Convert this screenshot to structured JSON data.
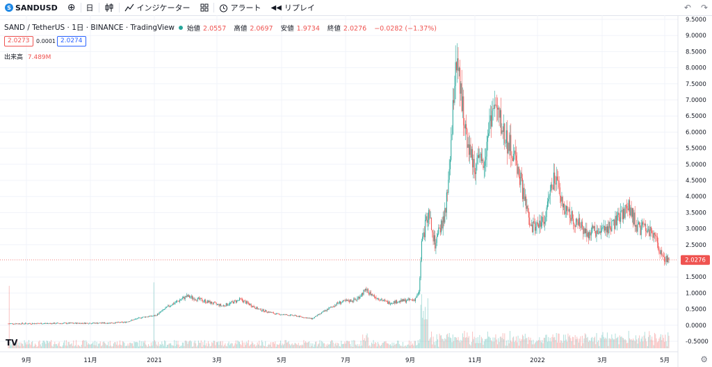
{
  "toolbar": {
    "symbol": "SANDUSD",
    "symbol_badge": "S",
    "add_icon": "⊕",
    "interval": "日",
    "candles_icon": "candles-icon",
    "indicators_label": "インジケーター",
    "layout_icon": "grid-icon",
    "alert_label": "アラート",
    "replay_label": "リプレイ",
    "undo_icon": "↶",
    "redo_icon": "↷"
  },
  "legend": {
    "title": "SAND / TetherUS · 1日 · BINANCE · TradingView",
    "open_label": "始値",
    "open": "2.0557",
    "high_label": "高値",
    "high": "2.0697",
    "low_label": "安値",
    "low": "1.9734",
    "close_label": "終値",
    "close": "2.0276",
    "change": "−0.0282 (−1.37%)",
    "bid": "2.0273",
    "spread": "0.0001",
    "ask": "2.0274",
    "volume_label": "出来高",
    "volume_value": "7.489M"
  },
  "colors": {
    "up": "#26a69a",
    "down": "#ef5350",
    "last_price_bg": "#ef5350"
  },
  "chart_data": {
    "type": "candlestick",
    "y_axis_labels": [
      "9.5000",
      "9.0000",
      "8.5000",
      "8.0000",
      "7.5000",
      "7.0000",
      "6.5000",
      "6.0000",
      "5.5000",
      "5.0000",
      "4.5000",
      "4.0000",
      "3.5000",
      "3.0000",
      "2.5000",
      "1.5000",
      "1.0000",
      "0.5000",
      "0.0000",
      "-0.5000"
    ],
    "y_axis_values": [
      9.5,
      9.0,
      8.5,
      8.0,
      7.5,
      7.0,
      6.5,
      6.0,
      5.5,
      5.0,
      4.5,
      4.0,
      3.5,
      3.0,
      2.5,
      1.5,
      1.0,
      0.5,
      0.0,
      -0.5
    ],
    "ylim": [
      -0.5,
      9.5
    ],
    "x_axis_labels": [
      "9月",
      "11月",
      "2021",
      "3月",
      "5月",
      "7月",
      "9月",
      "11月",
      "2022",
      "3月",
      "5月"
    ],
    "last_price": 2.0276,
    "last_price_label": "2.0276",
    "price_path": [
      {
        "d": 0,
        "p": 0.05
      },
      {
        "d": 60,
        "p": 0.06
      },
      {
        "d": 110,
        "p": 0.07
      },
      {
        "d": 130,
        "p": 0.09
      },
      {
        "d": 150,
        "p": 0.25
      },
      {
        "d": 165,
        "p": 0.3
      },
      {
        "d": 180,
        "p": 0.6
      },
      {
        "d": 200,
        "p": 0.9
      },
      {
        "d": 220,
        "p": 0.75
      },
      {
        "d": 240,
        "p": 0.6
      },
      {
        "d": 260,
        "p": 0.8
      },
      {
        "d": 280,
        "p": 0.5
      },
      {
        "d": 300,
        "p": 0.35
      },
      {
        "d": 320,
        "p": 0.3
      },
      {
        "d": 340,
        "p": 0.2
      },
      {
        "d": 355,
        "p": 0.45
      },
      {
        "d": 370,
        "p": 0.7
      },
      {
        "d": 390,
        "p": 0.8
      },
      {
        "d": 400,
        "p": 1.1
      },
      {
        "d": 410,
        "p": 0.9
      },
      {
        "d": 425,
        "p": 0.7
      },
      {
        "d": 440,
        "p": 0.75
      },
      {
        "d": 455,
        "p": 0.8
      },
      {
        "d": 460,
        "p": 1.0
      },
      {
        "d": 463,
        "p": 2.5
      },
      {
        "d": 470,
        "p": 3.5
      },
      {
        "d": 478,
        "p": 2.5
      },
      {
        "d": 490,
        "p": 3.5
      },
      {
        "d": 497,
        "p": 6.0
      },
      {
        "d": 501,
        "p": 8.3
      },
      {
        "d": 510,
        "p": 6.5
      },
      {
        "d": 520,
        "p": 5.0
      },
      {
        "d": 532,
        "p": 5.0
      },
      {
        "d": 540,
        "p": 6.5
      },
      {
        "d": 545,
        "p": 6.8
      },
      {
        "d": 555,
        "p": 6.0
      },
      {
        "d": 570,
        "p": 5.0
      },
      {
        "d": 585,
        "p": 3.0
      },
      {
        "d": 600,
        "p": 3.3
      },
      {
        "d": 612,
        "p": 4.6
      },
      {
        "d": 620,
        "p": 3.8
      },
      {
        "d": 635,
        "p": 3.2
      },
      {
        "d": 650,
        "p": 2.9
      },
      {
        "d": 665,
        "p": 2.9
      },
      {
        "d": 680,
        "p": 3.2
      },
      {
        "d": 695,
        "p": 3.7
      },
      {
        "d": 705,
        "p": 3.0
      },
      {
        "d": 715,
        "p": 3.0
      },
      {
        "d": 725,
        "p": 2.7
      },
      {
        "d": 733,
        "p": 2.1
      },
      {
        "d": 740,
        "p": 2.03
      }
    ]
  }
}
